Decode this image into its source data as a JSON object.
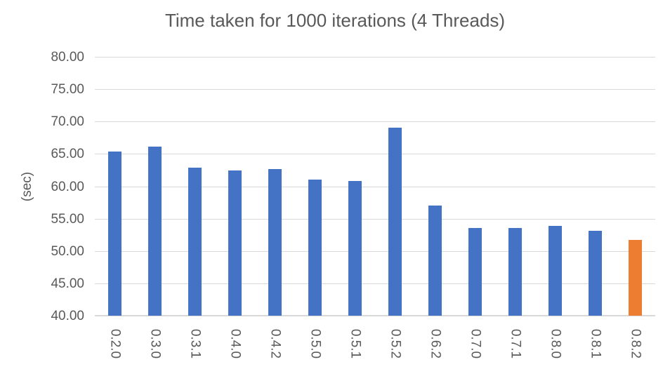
{
  "chart_data": {
    "type": "bar",
    "title": "Time taken for 1000 iterations (4 Threads)",
    "xlabel": "",
    "ylabel": "(sec)",
    "categories": [
      "0.2.0",
      "0.3.0",
      "0.3.1",
      "0.4.0",
      "0.4.2",
      "0.5.0",
      "0.5.1",
      "0.5.2",
      "0.6.2",
      "0.7.0",
      "0.7.1",
      "0.8.0",
      "0.8.1",
      "0.8.2"
    ],
    "values": [
      65.4,
      66.1,
      62.9,
      62.4,
      62.7,
      61.0,
      60.8,
      69.1,
      57.0,
      53.5,
      53.6,
      53.9,
      53.1,
      51.7
    ],
    "highlight_index": 13,
    "ylim": [
      40,
      80
    ],
    "ytick_step": 5,
    "ytick_labels": [
      "80.00",
      "75.00",
      "70.00",
      "65.00",
      "60.00",
      "55.00",
      "50.00",
      "45.00",
      "40.00"
    ],
    "grid": true,
    "legend": "none",
    "colors": {
      "bar": "#4472C4",
      "highlight": "#ED7D31",
      "gridline": "#d9d9d9",
      "text": "#595959",
      "background": "#ffffff"
    }
  }
}
